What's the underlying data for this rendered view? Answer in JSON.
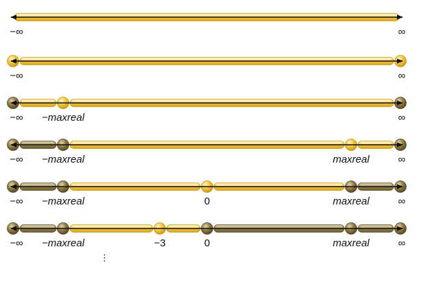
{
  "colors": {
    "empty_fill": "#f3c43f",
    "empty_edge": "#c79a1a",
    "filled_fill": "#9a8652",
    "filled_edge": "#5e4f27",
    "arrow": "#111111"
  },
  "rows": [
    {
      "segments": [
        {
          "from": "neg_inf",
          "to": "pos_inf",
          "filled": false
        }
      ],
      "points": [],
      "labels": [
        {
          "at": "neg_inf",
          "text": "−∞",
          "italic": false
        },
        {
          "at": "pos_inf",
          "text": "∞",
          "italic": false
        }
      ]
    },
    {
      "segments": [
        {
          "from": "neg_inf",
          "to": "pos_inf",
          "filled": false
        }
      ],
      "points": [
        {
          "at": "neg_inf",
          "filled": false
        },
        {
          "at": "pos_inf",
          "filled": false
        }
      ],
      "labels": [
        {
          "at": "neg_inf",
          "text": "−∞",
          "italic": false
        },
        {
          "at": "pos_inf",
          "text": "∞",
          "italic": false
        }
      ]
    },
    {
      "segments": [
        {
          "from": "neg_inf",
          "to": "neg_maxreal",
          "filled": false
        },
        {
          "from": "neg_maxreal",
          "to": "pos_inf",
          "filled": false
        }
      ],
      "points": [
        {
          "at": "neg_inf",
          "filled": true
        },
        {
          "at": "neg_maxreal",
          "filled": false
        },
        {
          "at": "pos_inf",
          "filled": true
        }
      ],
      "labels": [
        {
          "at": "neg_inf",
          "text": "−∞",
          "italic": false
        },
        {
          "at": "neg_maxreal",
          "text": "−maxreal",
          "italic": true
        },
        {
          "at": "pos_inf",
          "text": "∞",
          "italic": false
        }
      ]
    },
    {
      "segments": [
        {
          "from": "neg_inf",
          "to": "neg_maxreal",
          "filled": true
        },
        {
          "from": "neg_maxreal",
          "to": "pos_maxreal",
          "filled": false
        },
        {
          "from": "pos_maxreal",
          "to": "pos_inf",
          "filled": false
        }
      ],
      "points": [
        {
          "at": "neg_inf",
          "filled": true
        },
        {
          "at": "neg_maxreal",
          "filled": true
        },
        {
          "at": "pos_maxreal",
          "filled": false
        },
        {
          "at": "pos_inf",
          "filled": true
        }
      ],
      "labels": [
        {
          "at": "neg_inf",
          "text": "−∞",
          "italic": false
        },
        {
          "at": "neg_maxreal",
          "text": "−maxreal",
          "italic": true
        },
        {
          "at": "pos_maxreal",
          "text": "maxreal",
          "italic": true
        },
        {
          "at": "pos_inf",
          "text": "∞",
          "italic": false
        }
      ]
    },
    {
      "segments": [
        {
          "from": "neg_inf",
          "to": "neg_maxreal",
          "filled": true
        },
        {
          "from": "neg_maxreal",
          "to": "zero",
          "filled": false
        },
        {
          "from": "zero",
          "to": "pos_maxreal",
          "filled": false
        },
        {
          "from": "pos_maxreal",
          "to": "pos_inf",
          "filled": true
        }
      ],
      "points": [
        {
          "at": "neg_inf",
          "filled": true
        },
        {
          "at": "neg_maxreal",
          "filled": true
        },
        {
          "at": "zero",
          "filled": false
        },
        {
          "at": "pos_maxreal",
          "filled": true
        },
        {
          "at": "pos_inf",
          "filled": true
        }
      ],
      "labels": [
        {
          "at": "neg_inf",
          "text": "−∞",
          "italic": false
        },
        {
          "at": "neg_maxreal",
          "text": "−maxreal",
          "italic": true
        },
        {
          "at": "zero",
          "text": "0",
          "italic": false
        },
        {
          "at": "pos_maxreal",
          "text": "maxreal",
          "italic": true
        },
        {
          "at": "pos_inf",
          "text": "∞",
          "italic": false
        }
      ]
    },
    {
      "segments": [
        {
          "from": "neg_inf",
          "to": "neg_maxreal",
          "filled": true
        },
        {
          "from": "neg_maxreal",
          "to": "neg_three",
          "filled": false
        },
        {
          "from": "neg_three",
          "to": "zero",
          "filled": false
        },
        {
          "from": "zero",
          "to": "pos_maxreal",
          "filled": true
        },
        {
          "from": "pos_maxreal",
          "to": "pos_inf",
          "filled": true
        }
      ],
      "points": [
        {
          "at": "neg_inf",
          "filled": true
        },
        {
          "at": "neg_maxreal",
          "filled": true
        },
        {
          "at": "neg_three",
          "filled": false
        },
        {
          "at": "zero",
          "filled": true
        },
        {
          "at": "pos_maxreal",
          "filled": true
        },
        {
          "at": "pos_inf",
          "filled": true
        }
      ],
      "labels": [
        {
          "at": "neg_inf",
          "text": "−∞",
          "italic": false
        },
        {
          "at": "neg_maxreal",
          "text": "−maxreal",
          "italic": true
        },
        {
          "at": "neg_three",
          "text": "−3",
          "italic": false
        },
        {
          "at": "zero",
          "text": "0",
          "italic": false
        },
        {
          "at": "pos_maxreal",
          "text": "maxreal",
          "italic": true
        },
        {
          "at": "pos_inf",
          "text": "∞",
          "italic": false
        }
      ]
    }
  ],
  "continuation": "⋮"
}
